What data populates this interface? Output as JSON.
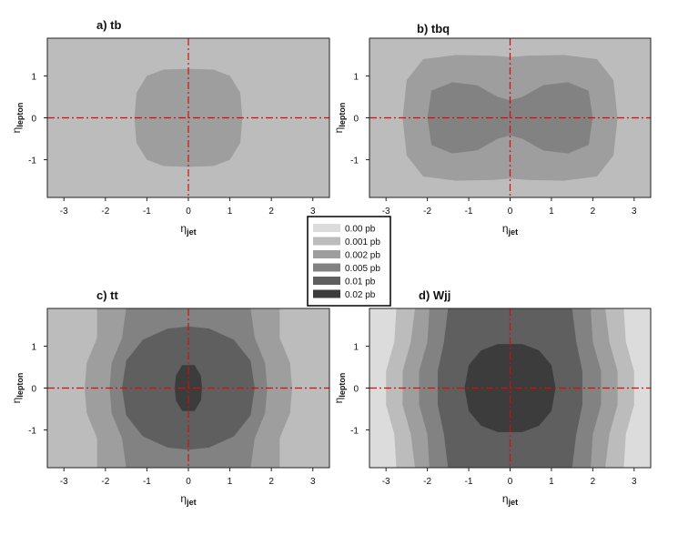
{
  "figure": {
    "legend": {
      "entries": [
        {
          "label": "0.00 pb",
          "color": "#dcdcdc"
        },
        {
          "label": "0.001 pb",
          "color": "#bcbcbc"
        },
        {
          "label": "0.002 pb",
          "color": "#9e9e9e"
        },
        {
          "label": "0.005 pb",
          "color": "#828282"
        },
        {
          "label": "0.01 pb",
          "color": "#5f5f5f"
        },
        {
          "label": "0.02 pb",
          "color": "#3c3c3c"
        }
      ]
    },
    "guide_color": "#d01010"
  },
  "chart_data": [
    {
      "type": "heatmap",
      "title": "a) tb",
      "xlabel_main": "η",
      "xlabel_sub": "jet",
      "ylabel_main": "η",
      "ylabel_sub": "lepton",
      "xlim": [
        -3.4,
        3.4
      ],
      "ylim": [
        -1.9,
        1.9
      ],
      "x_ticks": [
        "-3",
        "-2",
        "-1",
        "0",
        "1",
        "2",
        "3"
      ],
      "y_ticks": [
        "1",
        "0",
        "-1"
      ],
      "background_level": 1,
      "contours": [
        {
          "level": 2,
          "points": [
            [
              -1.3,
              0
            ],
            [
              -1.25,
              0.6
            ],
            [
              -1.0,
              1.0
            ],
            [
              -0.6,
              1.15
            ],
            [
              0,
              1.17
            ],
            [
              0.6,
              1.15
            ],
            [
              1.0,
              1.0
            ],
            [
              1.25,
              0.6
            ],
            [
              1.3,
              0
            ],
            [
              1.25,
              -0.6
            ],
            [
              1.0,
              -1.0
            ],
            [
              0.6,
              -1.15
            ],
            [
              0,
              -1.17
            ],
            [
              -0.6,
              -1.15
            ],
            [
              -1.0,
              -1.0
            ],
            [
              -1.25,
              -0.6
            ]
          ]
        }
      ]
    },
    {
      "type": "heatmap",
      "title": "b) tbq",
      "xlabel_main": "η",
      "xlabel_sub": "jet",
      "ylabel_main": "η",
      "ylabel_sub": "lepton",
      "xlim": [
        -3.4,
        3.4
      ],
      "ylim": [
        -1.9,
        1.9
      ],
      "x_ticks": [
        "-3",
        "-2",
        "-1",
        "0",
        "1",
        "2",
        "3"
      ],
      "y_ticks": [
        "1",
        "0",
        "-1"
      ],
      "background_level": 1,
      "contours": [
        {
          "level": 2,
          "points": [
            [
              -2.6,
              0
            ],
            [
              -2.5,
              0.9
            ],
            [
              -2.1,
              1.4
            ],
            [
              -1.3,
              1.5
            ],
            [
              -0.4,
              1.48
            ],
            [
              0,
              1.45
            ],
            [
              0.4,
              1.48
            ],
            [
              1.3,
              1.5
            ],
            [
              2.1,
              1.4
            ],
            [
              2.5,
              0.9
            ],
            [
              2.6,
              0
            ],
            [
              2.5,
              -0.9
            ],
            [
              2.1,
              -1.4
            ],
            [
              1.3,
              -1.5
            ],
            [
              0.4,
              -1.48
            ],
            [
              0,
              -1.45
            ],
            [
              -0.4,
              -1.48
            ],
            [
              -1.3,
              -1.5
            ],
            [
              -2.1,
              -1.4
            ],
            [
              -2.5,
              -0.9
            ]
          ]
        },
        {
          "level": 3,
          "points": [
            [
              -2.0,
              0
            ],
            [
              -1.9,
              0.65
            ],
            [
              -1.4,
              0.85
            ],
            [
              -0.8,
              0.78
            ],
            [
              -0.3,
              0.5
            ],
            [
              0,
              0.42
            ],
            [
              0.3,
              0.5
            ],
            [
              0.8,
              0.78
            ],
            [
              1.4,
              0.85
            ],
            [
              1.9,
              0.65
            ],
            [
              2.0,
              0
            ],
            [
              1.9,
              -0.65
            ],
            [
              1.4,
              -0.85
            ],
            [
              0.8,
              -0.78
            ],
            [
              0.3,
              -0.5
            ],
            [
              0,
              -0.42
            ],
            [
              -0.3,
              -0.5
            ],
            [
              -0.8,
              -0.78
            ],
            [
              -1.4,
              -0.85
            ],
            [
              -1.9,
              -0.65
            ]
          ]
        }
      ]
    },
    {
      "type": "heatmap",
      "title": "c) tt",
      "xlabel_main": "η",
      "xlabel_sub": "jet",
      "ylabel_main": "η",
      "ylabel_sub": "lepton",
      "xlim": [
        -3.4,
        3.4
      ],
      "ylim": [
        -1.9,
        1.9
      ],
      "x_ticks": [
        "-3",
        "-2",
        "-1",
        "0",
        "1",
        "2",
        "3"
      ],
      "y_ticks": [
        "1",
        "0",
        "-1"
      ],
      "background_level": 1,
      "contours": [
        {
          "level": 2,
          "points": [
            [
              -2.2,
              1.9
            ],
            [
              -2.2,
              1.2
            ],
            [
              -2.45,
              0.6
            ],
            [
              -2.5,
              0
            ],
            [
              -2.45,
              -0.6
            ],
            [
              -2.2,
              -1.2
            ],
            [
              -2.2,
              -1.9
            ],
            [
              2.2,
              -1.9
            ],
            [
              2.2,
              -1.2
            ],
            [
              2.45,
              -0.6
            ],
            [
              2.5,
              0
            ],
            [
              2.45,
              0.6
            ],
            [
              2.2,
              1.2
            ],
            [
              2.2,
              1.9
            ]
          ]
        },
        {
          "level": 3,
          "points": [
            [
              -1.5,
              1.9
            ],
            [
              -1.6,
              1.2
            ],
            [
              -1.85,
              0.6
            ],
            [
              -1.9,
              0
            ],
            [
              -1.85,
              -0.6
            ],
            [
              -1.6,
              -1.2
            ],
            [
              -1.5,
              -1.9
            ],
            [
              1.5,
              -1.9
            ],
            [
              1.6,
              -1.2
            ],
            [
              1.85,
              -0.6
            ],
            [
              1.9,
              0
            ],
            [
              1.85,
              0.6
            ],
            [
              1.6,
              1.2
            ],
            [
              1.5,
              1.9
            ]
          ]
        },
        {
          "level": 4,
          "points": [
            [
              -1.6,
              0
            ],
            [
              -1.5,
              0.65
            ],
            [
              -1.1,
              1.15
            ],
            [
              -0.5,
              1.42
            ],
            [
              0,
              1.47
            ],
            [
              0.5,
              1.42
            ],
            [
              1.1,
              1.15
            ],
            [
              1.5,
              0.65
            ],
            [
              1.6,
              0
            ],
            [
              1.5,
              -0.65
            ],
            [
              1.1,
              -1.15
            ],
            [
              0.5,
              -1.42
            ],
            [
              0,
              -1.47
            ],
            [
              -0.5,
              -1.42
            ],
            [
              -1.1,
              -1.15
            ],
            [
              -1.5,
              -0.65
            ]
          ]
        },
        {
          "level": 5,
          "points": [
            [
              -0.33,
              0
            ],
            [
              -0.3,
              0.3
            ],
            [
              -0.15,
              0.55
            ],
            [
              0.15,
              0.55
            ],
            [
              0.3,
              0.3
            ],
            [
              0.33,
              0
            ],
            [
              0.3,
              -0.3
            ],
            [
              0.15,
              -0.55
            ],
            [
              -0.15,
              -0.55
            ],
            [
              -0.3,
              -0.3
            ]
          ]
        }
      ]
    },
    {
      "type": "heatmap",
      "title": "d) Wjj",
      "xlabel_main": "η",
      "xlabel_sub": "jet",
      "ylabel_main": "η",
      "ylabel_sub": "lepton",
      "xlim": [
        -3.4,
        3.4
      ],
      "ylim": [
        -1.9,
        1.9
      ],
      "x_ticks": [
        "-3",
        "-2",
        "-1",
        "0",
        "1",
        "2",
        "3"
      ],
      "y_ticks": [
        "1",
        "0",
        "-1"
      ],
      "background_level": 0,
      "contours": [
        {
          "level": 1,
          "points": [
            [
              -2.75,
              1.9
            ],
            [
              -2.8,
              1.1
            ],
            [
              -3.0,
              0.4
            ],
            [
              -3.0,
              -0.4
            ],
            [
              -2.8,
              -1.1
            ],
            [
              -2.75,
              -1.9
            ],
            [
              2.75,
              -1.9
            ],
            [
              2.8,
              -1.1
            ],
            [
              3.0,
              -0.4
            ],
            [
              3.0,
              0.4
            ],
            [
              2.8,
              1.1
            ],
            [
              2.75,
              1.9
            ]
          ]
        },
        {
          "level": 2,
          "points": [
            [
              -2.3,
              1.9
            ],
            [
              -2.4,
              1.1
            ],
            [
              -2.6,
              0.4
            ],
            [
              -2.6,
              -0.4
            ],
            [
              -2.4,
              -1.1
            ],
            [
              -2.3,
              -1.9
            ],
            [
              2.3,
              -1.9
            ],
            [
              2.4,
              -1.1
            ],
            [
              2.6,
              -0.4
            ],
            [
              2.6,
              0.4
            ],
            [
              2.4,
              1.1
            ],
            [
              2.3,
              1.9
            ]
          ]
        },
        {
          "level": 3,
          "points": [
            [
              -1.95,
              1.9
            ],
            [
              -2.0,
              1.1
            ],
            [
              -2.2,
              0.4
            ],
            [
              -2.2,
              -0.4
            ],
            [
              -2.0,
              -1.1
            ],
            [
              -1.95,
              -1.9
            ],
            [
              1.95,
              -1.9
            ],
            [
              2.0,
              -1.1
            ],
            [
              2.2,
              -0.4
            ],
            [
              2.2,
              0.4
            ],
            [
              2.0,
              1.1
            ],
            [
              1.95,
              1.9
            ]
          ]
        },
        {
          "level": 4,
          "points": [
            [
              -1.5,
              1.9
            ],
            [
              -1.6,
              1.1
            ],
            [
              -1.75,
              0.4
            ],
            [
              -1.75,
              -0.4
            ],
            [
              -1.6,
              -1.1
            ],
            [
              -1.5,
              -1.9
            ],
            [
              1.5,
              -1.9
            ],
            [
              1.6,
              -1.1
            ],
            [
              1.75,
              -0.4
            ],
            [
              1.75,
              0.4
            ],
            [
              1.6,
              1.1
            ],
            [
              1.5,
              1.9
            ]
          ]
        },
        {
          "level": 5,
          "points": [
            [
              -1.1,
              0
            ],
            [
              -1.0,
              0.55
            ],
            [
              -0.7,
              0.9
            ],
            [
              -0.3,
              1.05
            ],
            [
              0.3,
              1.05
            ],
            [
              0.7,
              0.9
            ],
            [
              1.0,
              0.55
            ],
            [
              1.1,
              0
            ],
            [
              1.0,
              -0.55
            ],
            [
              0.7,
              -0.9
            ],
            [
              0.3,
              -1.05
            ],
            [
              -0.3,
              -1.05
            ],
            [
              -0.7,
              -0.9
            ],
            [
              -1.0,
              -0.55
            ]
          ]
        }
      ]
    }
  ]
}
